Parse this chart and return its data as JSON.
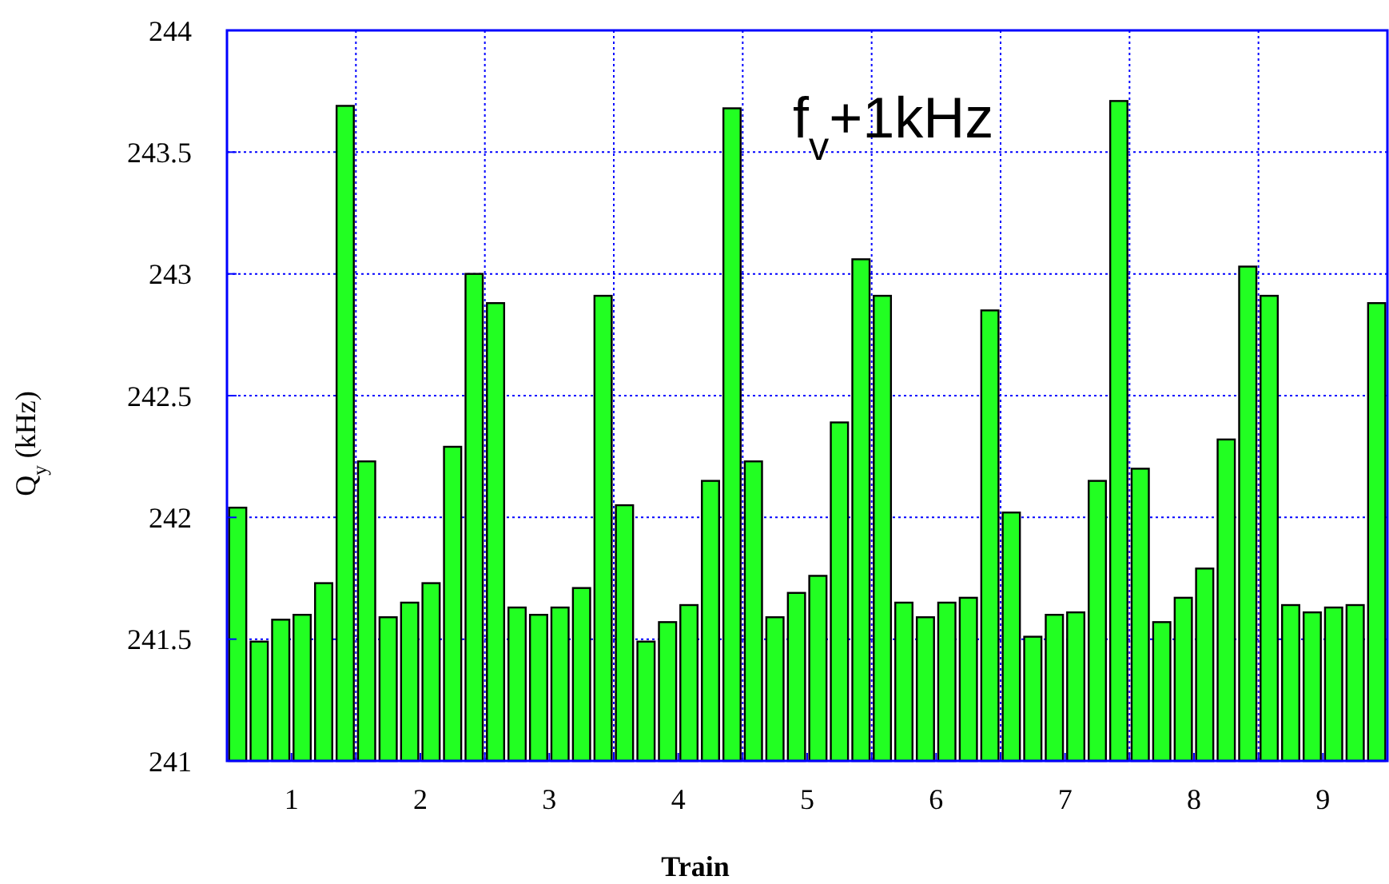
{
  "chart_data": {
    "type": "bar",
    "xlabel": "Train",
    "ylabel": "Q$_{y}$ (kHz)",
    "annotations": [
      "f$_{v}$+1kHz"
    ],
    "x": [
      0.583,
      0.75,
      0.917,
      1.083,
      1.25,
      1.417,
      1.583,
      1.75,
      1.917,
      2.083,
      2.25,
      2.417,
      2.583,
      2.75,
      2.917,
      3.083,
      3.25,
      3.417,
      3.583,
      3.75,
      3.917,
      4.083,
      4.25,
      4.417,
      4.583,
      4.75,
      4.917,
      5.083,
      5.25,
      5.417,
      5.583,
      5.75,
      5.917,
      6.083,
      6.25,
      6.417,
      6.583,
      6.75,
      6.917,
      7.083,
      7.25,
      7.417,
      7.583,
      7.75,
      7.917,
      8.083,
      8.25,
      8.417,
      8.583,
      8.75,
      8.917,
      9.083,
      9.25,
      9.417
    ],
    "values": [
      242.04,
      241.49,
      241.58,
      241.6,
      241.73,
      243.69,
      242.23,
      241.59,
      241.65,
      241.73,
      242.29,
      243.0,
      242.88,
      241.63,
      241.6,
      241.63,
      241.71,
      242.91,
      242.05,
      241.49,
      241.57,
      241.64,
      242.15,
      243.68,
      242.23,
      241.59,
      241.69,
      241.76,
      242.39,
      243.06,
      242.91,
      241.65,
      241.59,
      241.65,
      241.67,
      242.85,
      242.02,
      241.51,
      241.6,
      241.61,
      242.15,
      243.71,
      242.2,
      241.57,
      241.67,
      241.79,
      242.32,
      243.03,
      242.91,
      241.64,
      241.61,
      241.63,
      241.64,
      242.88
    ],
    "color": "#22ff22",
    "xlim": [
      0.5,
      9.5
    ],
    "xticks": [
      1,
      {
        "value": 1.5,
        "label": null
      },
      2,
      {
        "value": 2.5,
        "label": null
      },
      3,
      {
        "value": 3.5,
        "label": null
      },
      4,
      {
        "value": 4.5,
        "label": null
      },
      5,
      {
        "value": 5.5,
        "label": null
      },
      6,
      {
        "value": 6.5,
        "label": null
      },
      7,
      {
        "value": 7.5,
        "label": null
      },
      8,
      {
        "value": 8.5,
        "label": null
      },
      9
    ],
    "ylim": [
      241,
      244
    ],
    "yticks": [
      241,
      241.5,
      242,
      242.5,
      243,
      243.5,
      244
    ],
    "grid": true
  }
}
